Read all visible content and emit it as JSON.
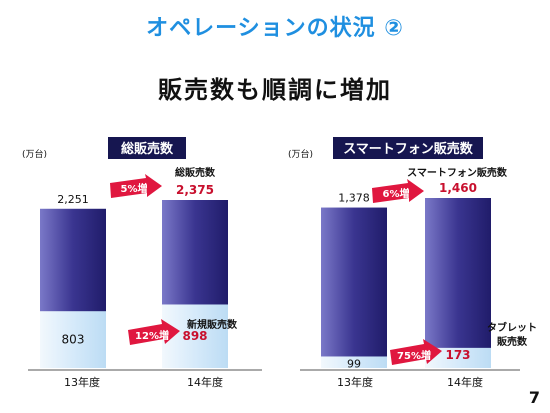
{
  "slide": {
    "title": "オペレーションの状況 ②",
    "subtitle": "販売数も順調に増加",
    "page_number": "7"
  },
  "colors": {
    "title": "#1f8fe0",
    "bar_dark": "#2e2a80",
    "bar_light": "#d9ecfb",
    "header_bg": "#161650",
    "arrow": "#e0173f",
    "value_red": "#c8102e"
  },
  "chart_data": [
    {
      "type": "bar",
      "title": "総販売数",
      "unit": "(万台)",
      "categories": [
        "13年度",
        "14年度"
      ],
      "series": [
        {
          "name": "総販売数",
          "values": [
            2251,
            2375
          ],
          "labels": [
            "2,251",
            "2,375"
          ]
        },
        {
          "name": "新規販売数",
          "values": [
            803,
            898
          ],
          "labels": [
            "803",
            "898"
          ]
        }
      ],
      "annotations": {
        "total_growth": "5%増",
        "new_growth": "12%増",
        "total_label": "総販売数",
        "new_label": "新規販売数"
      },
      "ylim": [
        0,
        2375
      ]
    },
    {
      "type": "bar",
      "title": "スマートフォン販売数",
      "unit": "(万台)",
      "categories": [
        "13年度",
        "14年度"
      ],
      "series": [
        {
          "name": "スマートフォン販売数",
          "values": [
            1378,
            1460
          ],
          "labels": [
            "1,378",
            "1,460"
          ]
        },
        {
          "name": "タブレット販売数",
          "values": [
            99,
            173
          ],
          "labels": [
            "99",
            "173"
          ]
        }
      ],
      "annotations": {
        "total_growth": "6%増",
        "new_growth": "75%増",
        "total_label": "スマートフォン販売数",
        "new_label_line1": "タブレット",
        "new_label_line2": "販売数"
      },
      "ylim": [
        0,
        1460
      ]
    }
  ]
}
